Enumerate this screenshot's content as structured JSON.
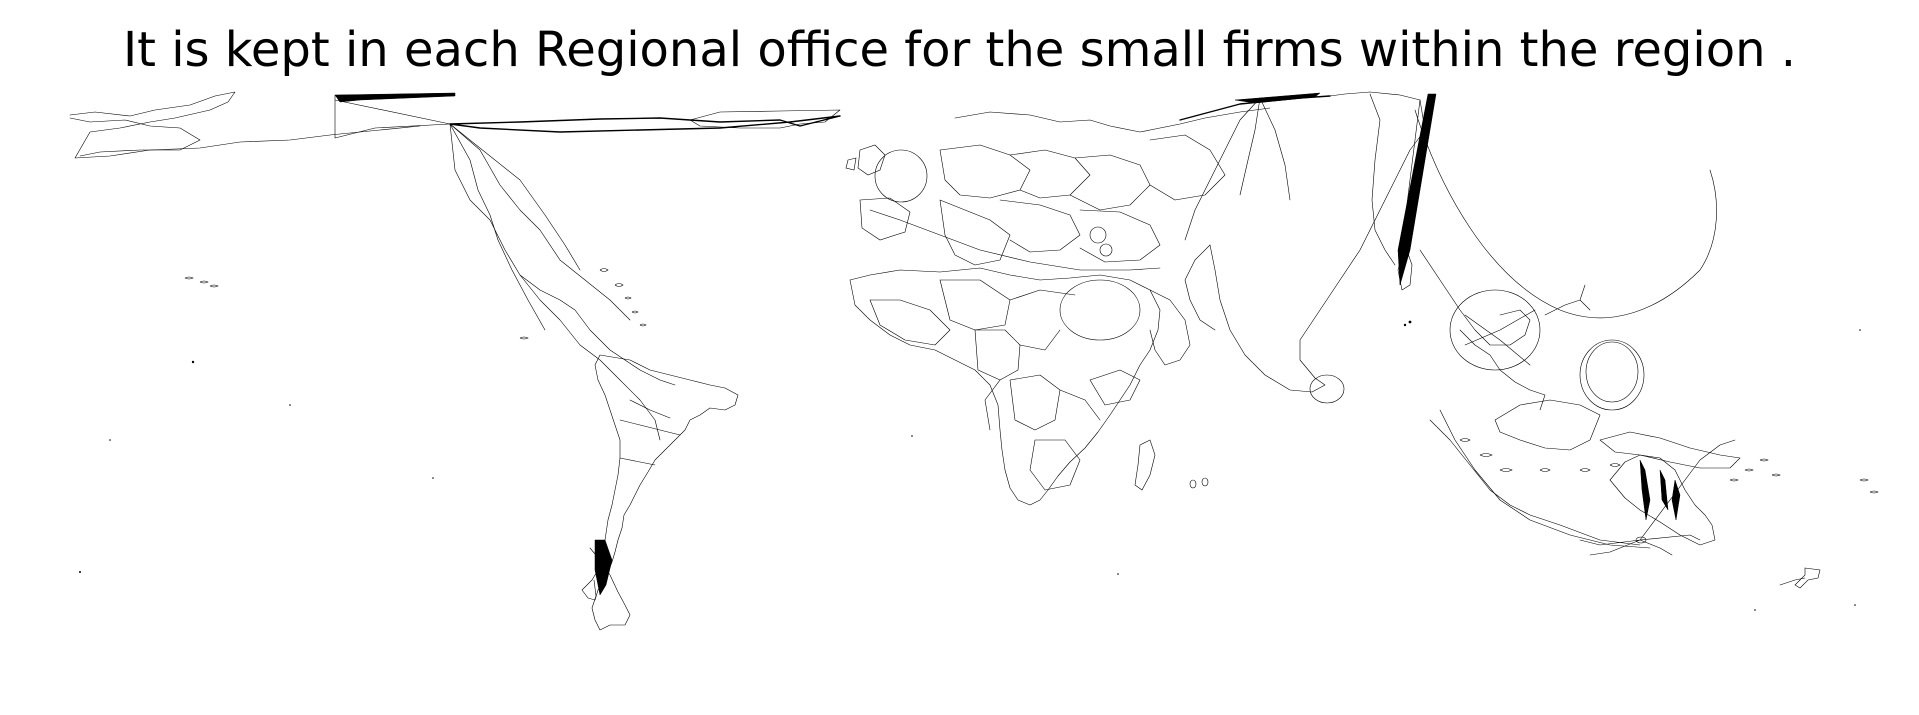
{
  "title": "It is kept in each Regional office for the small firms within the region ."
}
